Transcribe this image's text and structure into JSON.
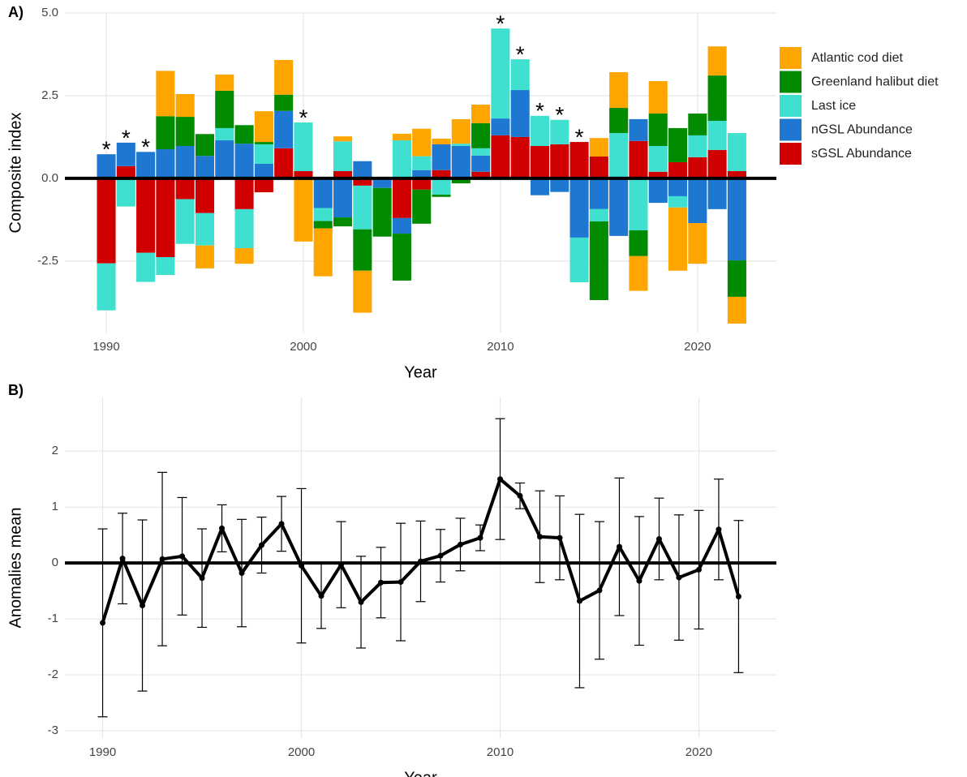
{
  "chart_data": [
    {
      "type": "stacked_bar",
      "panel_label": "A)",
      "x_label": "Year",
      "y_label": "Composite index",
      "x": [
        1990,
        1991,
        1992,
        1993,
        1994,
        1995,
        1996,
        1997,
        1998,
        1999,
        2000,
        2001,
        2002,
        2003,
        2004,
        2005,
        2006,
        2007,
        2008,
        2009,
        2010,
        2011,
        2012,
        2013,
        2014,
        2015,
        2016,
        2017,
        2018,
        2019,
        2020,
        2021,
        2022
      ],
      "series": [
        {
          "name": "Atlantic cod diet",
          "color": "#ffa500",
          "values": [
            0,
            0,
            0,
            1.37,
            0.69,
            -0.69,
            0.49,
            -0.47,
            0.93,
            1.05,
            -1.91,
            -1.45,
            0.15,
            -1.27,
            0,
            0.2,
            0.83,
            0.17,
            0.74,
            0.56,
            0,
            0,
            0,
            0,
            0,
            0.56,
            1.08,
            -1.05,
            0.98,
            -1.91,
            -1.23,
            0.88,
            -0.81
          ]
        },
        {
          "name": "Greenland halibut diet",
          "color": "#008b00",
          "values": [
            0,
            0,
            0,
            1.0,
            0.88,
            0.66,
            1.13,
            0.56,
            0.07,
            0.49,
            0,
            -0.22,
            -0.27,
            -1.25,
            -1.47,
            -1.42,
            -1.03,
            -0.07,
            -0.15,
            0.76,
            0,
            0,
            0,
            0,
            0,
            -2.38,
            0.76,
            -0.78,
            0.98,
            1.03,
            0.66,
            1.37,
            -1.1
          ]
        },
        {
          "name": "Last ice",
          "color": "#40e0d0",
          "values": [
            -1.42,
            -0.85,
            -0.88,
            -0.54,
            -1.35,
            -0.98,
            0.37,
            -1.18,
            0.59,
            0,
            1.47,
            -0.39,
            0.9,
            -1.32,
            0,
            1.15,
            0.42,
            -0.49,
            0.07,
            0.22,
            2.72,
            0.93,
            0.91,
            0.74,
            -1.35,
            -0.37,
            1.37,
            -1.57,
            0.78,
            -0.34,
            0.66,
            0.88,
            1.15
          ]
        },
        {
          "name": "nGSL Abundance",
          "color": "#1e78d2",
          "values": [
            0.73,
            0.71,
            0.8,
            0.88,
            0.98,
            0.68,
            1.15,
            1.05,
            0.44,
            1.13,
            0,
            -0.9,
            -1.18,
            0.52,
            -0.29,
            -0.47,
            0.25,
            0.78,
            0.98,
            0.49,
            0.51,
            1.42,
            -0.51,
            -0.41,
            -1.79,
            -0.93,
            -1.74,
            0.66,
            -0.74,
            -0.54,
            -1.35,
            -0.93,
            -2.48
          ]
        },
        {
          "name": "sGSL Abundance",
          "color": "#d00000",
          "values": [
            -2.57,
            0.37,
            -2.25,
            -2.38,
            -0.63,
            -1.05,
            0,
            -0.93,
            -0.42,
            0.91,
            0.22,
            0,
            0.22,
            -0.22,
            0,
            -1.2,
            -0.34,
            0.25,
            0,
            0.2,
            1.3,
            1.25,
            0.98,
            1.03,
            1.1,
            0.66,
            0,
            1.13,
            0.2,
            0.49,
            0.64,
            0.86,
            0.22
          ]
        }
      ],
      "annotations": [
        {
          "x": 1990,
          "label": "*"
        },
        {
          "x": 1991,
          "label": "*"
        },
        {
          "x": 1992,
          "label": "*"
        },
        {
          "x": 2000,
          "label": "*"
        },
        {
          "x": 2010,
          "label": "*"
        },
        {
          "x": 2011,
          "label": "*"
        },
        {
          "x": 2012,
          "label": "*"
        },
        {
          "x": 2013,
          "label": "*"
        },
        {
          "x": 2014,
          "label": "*"
        }
      ],
      "hline": 0,
      "xlim": [
        1987.9,
        2024.0
      ],
      "xticks": [
        1990,
        2000,
        2010,
        2020
      ],
      "ylim": [
        -4.66,
        5.0
      ],
      "yticks": [
        -2.5,
        {
          "value": 0,
          "label": "0.0"
        },
        2.5,
        {
          "value": 5,
          "label": "5.0"
        }
      ],
      "grid": true
    },
    {
      "type": "line",
      "panel_label": "B)",
      "x_label": "Year",
      "y_label": "Anomalies mean",
      "color": "#000000",
      "x": [
        1990,
        1991,
        1992,
        1993,
        1994,
        1995,
        1996,
        1997,
        1998,
        1999,
        2000,
        2001,
        2002,
        2003,
        2004,
        2005,
        2006,
        2007,
        2008,
        2009,
        2010,
        2011,
        2012,
        2013,
        2014,
        2015,
        2016,
        2017,
        2018,
        2019,
        2020,
        2021,
        2022
      ],
      "values": [
        -1.07,
        0.08,
        -0.76,
        0.07,
        0.12,
        -0.27,
        0.62,
        -0.18,
        0.32,
        0.7,
        -0.05,
        -0.59,
        -0.03,
        -0.7,
        -0.35,
        -0.34,
        0.03,
        0.13,
        0.33,
        0.45,
        1.5,
        1.2,
        0.47,
        0.45,
        -0.68,
        -0.49,
        0.29,
        -0.32,
        0.43,
        -0.26,
        -0.12,
        0.6,
        -0.6
      ],
      "errors": [
        1.68,
        0.81,
        1.53,
        1.55,
        1.05,
        0.88,
        0.42,
        0.96,
        0.5,
        0.49,
        1.38,
        0.58,
        0.77,
        0.82,
        0.63,
        1.05,
        0.72,
        0.47,
        0.47,
        0.23,
        1.08,
        0.23,
        0.82,
        0.75,
        1.55,
        1.23,
        1.23,
        1.15,
        0.73,
        1.12,
        1.06,
        0.9,
        1.36
      ],
      "hline": 0,
      "xlim": [
        1988.1,
        2023.9
      ],
      "xticks": [
        1990,
        2000,
        2010,
        2020
      ],
      "ylim": [
        -3.13,
        2.96
      ],
      "yticks": [
        -3,
        -2,
        -1,
        0,
        1,
        2
      ],
      "grid": true
    }
  ]
}
